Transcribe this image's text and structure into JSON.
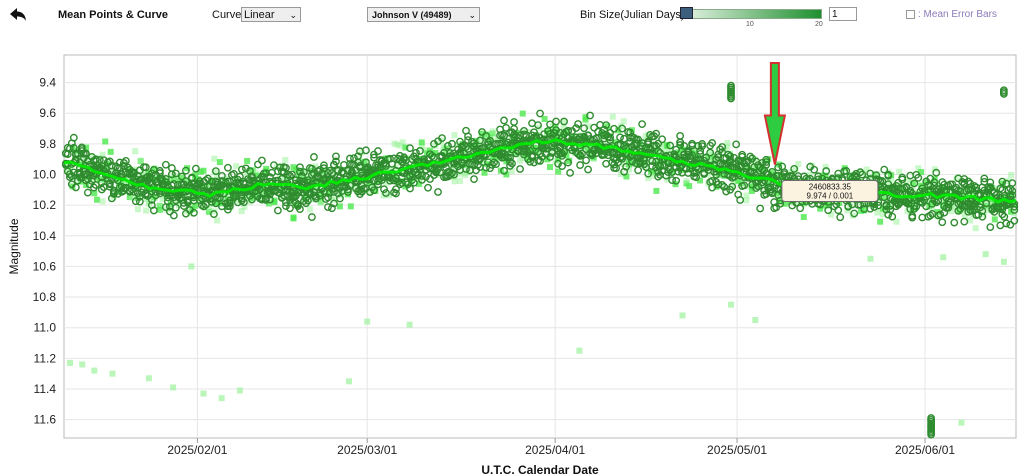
{
  "toolbar": {
    "back_icon": "back-arrow-icon",
    "title": "Mean Points & Curve",
    "curve_label": "Curve:",
    "curve_value": "Linear",
    "band_value": "Johnson V (49489)",
    "bin_size_label": "Bin Size(Julian Days):",
    "bin_slider_ticks": [
      "10",
      "20"
    ],
    "bin_size_value": "1",
    "mean_error_bars_label": ": Mean Error Bars",
    "mean_error_bars_checked": false
  },
  "chart_data": {
    "type": "scatter",
    "xlabel": "U.T.C. Calendar Date",
    "ylabel": "Magnitude",
    "x_tick_labels": [
      "2025/02/01",
      "2025/03/01",
      "2025/04/01",
      "2025/05/01",
      "2025/06/01"
    ],
    "x_tick_days": [
      22,
      50,
      81,
      111,
      142
    ],
    "xlim_days": [
      0,
      157
    ],
    "y_ticks": [
      9.4,
      9.6,
      9.8,
      10.0,
      10.2,
      10.4,
      10.6,
      10.8,
      11.0,
      11.2,
      11.4,
      11.6
    ],
    "ylim": [
      9.22,
      11.72
    ],
    "y_inverted": true,
    "grid": true,
    "colors": {
      "obs_marker": "#2e8b2e",
      "binned_light": "#9df29d",
      "binned_mid": "#4ce84c",
      "mean_curve": "#00ee00",
      "pointer_fill": "#2ecc40",
      "pointer_stroke": "#d43030"
    },
    "mean_curve": {
      "days": [
        0,
        8,
        16,
        24,
        32,
        40,
        48,
        56,
        64,
        72,
        80,
        88,
        96,
        104,
        112,
        120,
        128,
        136,
        144,
        152,
        157
      ],
      "mag": [
        9.92,
        10.01,
        10.1,
        10.13,
        10.07,
        10.08,
        10.03,
        9.97,
        9.9,
        9.83,
        9.78,
        9.81,
        9.87,
        9.93,
        10.0,
        10.07,
        10.11,
        10.13,
        10.14,
        10.16,
        10.18
      ]
    },
    "outliers": {
      "days": [
        1,
        3,
        5,
        8,
        14,
        18,
        21,
        23,
        26,
        29,
        47,
        50,
        57,
        85,
        102,
        110,
        114,
        133,
        145,
        148,
        152,
        155
      ],
      "mag": [
        11.23,
        11.24,
        11.28,
        11.3,
        11.33,
        11.39,
        10.6,
        11.43,
        11.46,
        11.41,
        11.35,
        10.96,
        10.98,
        11.15,
        10.92,
        10.85,
        10.95,
        10.55,
        10.54,
        11.62,
        10.52,
        10.57
      ]
    },
    "clusters": [
      {
        "day": 110,
        "mag_from": 9.42,
        "mag_to": 9.51
      },
      {
        "day": 143,
        "mag_from": 11.59,
        "mag_to": 11.7
      },
      {
        "day": 155,
        "mag_from": 9.45,
        "mag_to": 9.48
      }
    ],
    "tooltip": {
      "jd": "2460833.35",
      "value": "9.974 / 0.001",
      "day": 117.4,
      "mag": 9.974
    }
  }
}
